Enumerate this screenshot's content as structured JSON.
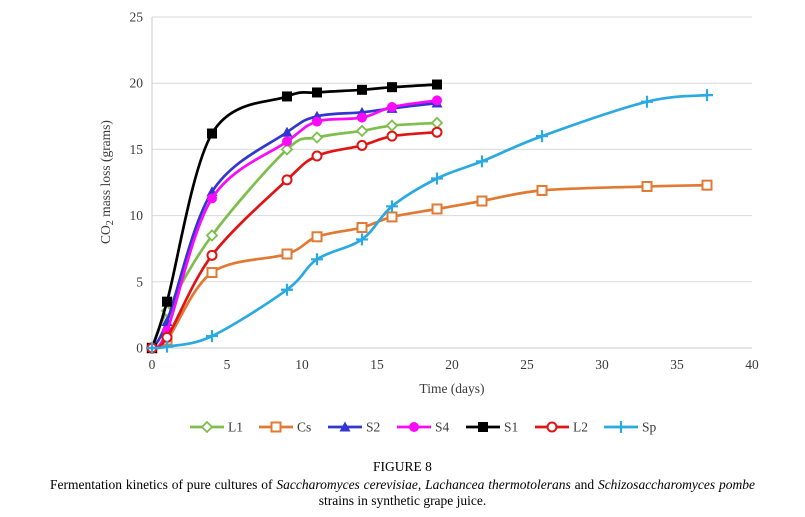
{
  "chart_data": {
    "type": "line",
    "title": "",
    "xlabel": "Time (days)",
    "ylabel": "CO2 mass loss (grams)",
    "ylabel_parts": {
      "pre": "CO",
      "sub": "2",
      "post": " mass loss (grams)"
    },
    "xlim": [
      0,
      40
    ],
    "ylim": [
      0,
      25
    ],
    "xticks": [
      0,
      5,
      10,
      15,
      20,
      25,
      30,
      35,
      40
    ],
    "yticks": [
      0,
      5,
      10,
      15,
      20,
      25
    ],
    "grid": "horizontal",
    "grid_color": "#d9d9d9",
    "axis_color": "#c9c9c9",
    "legend_position": "bottom",
    "series": [
      {
        "name": "L1",
        "color": "#7ebe4d",
        "marker": "diamond-open",
        "x": [
          0,
          1,
          4,
          9,
          11,
          14,
          16,
          19
        ],
        "y": [
          0,
          2.8,
          8.5,
          15.0,
          15.9,
          16.4,
          16.8,
          17.0
        ]
      },
      {
        "name": "Cs",
        "color": "#e07a33",
        "marker": "square-open",
        "x": [
          0,
          1,
          4,
          9,
          11,
          14,
          16,
          19,
          22,
          26,
          33,
          37
        ],
        "y": [
          0,
          0.6,
          5.7,
          7.1,
          8.4,
          9.1,
          9.9,
          10.5,
          11.1,
          11.9,
          12.2,
          12.3
        ]
      },
      {
        "name": "S2",
        "color": "#3236cf",
        "marker": "triangle-filled",
        "x": [
          0,
          1,
          4,
          9,
          11,
          14,
          16,
          19
        ],
        "y": [
          0,
          2.0,
          11.8,
          16.3,
          17.5,
          17.8,
          18.1,
          18.5
        ]
      },
      {
        "name": "S4",
        "color": "#fa0afa",
        "marker": "circle-filled",
        "x": [
          0,
          1,
          4,
          9,
          11,
          14,
          16,
          19
        ],
        "y": [
          0,
          1.3,
          11.3,
          15.6,
          17.1,
          17.4,
          18.2,
          18.7
        ]
      },
      {
        "name": "S1",
        "color": "#000000",
        "marker": "square-filled",
        "x": [
          0,
          1,
          4,
          9,
          11,
          14,
          16,
          19
        ],
        "y": [
          0,
          3.5,
          16.2,
          19.0,
          19.3,
          19.5,
          19.7,
          19.9
        ]
      },
      {
        "name": "L2",
        "color": "#e01414",
        "marker": "circle-open",
        "x": [
          0,
          1,
          4,
          9,
          11,
          14,
          16,
          19
        ],
        "y": [
          0,
          0.8,
          7.0,
          12.7,
          14.5,
          15.3,
          16.0,
          16.3
        ]
      },
      {
        "name": "Sp",
        "color": "#2ba9e1",
        "marker": "plus",
        "x": [
          0,
          1,
          4,
          9,
          11,
          14,
          16,
          19,
          22,
          26,
          33,
          37
        ],
        "y": [
          0,
          0.1,
          0.9,
          4.4,
          6.7,
          8.2,
          10.7,
          12.8,
          14.1,
          16.0,
          18.6,
          19.1
        ]
      }
    ]
  },
  "caption": {
    "figure_label": "FIGURE 8",
    "segments": [
      {
        "text": "Fermentation kinetics of pure cultures of ",
        "italic": false
      },
      {
        "text": "Saccharomyces cerevisiae",
        "italic": true
      },
      {
        "text": ", ",
        "italic": false
      },
      {
        "text": "Lachancea thermotolerans",
        "italic": true
      },
      {
        "text": " and ",
        "italic": false
      },
      {
        "text": "Schizosaccharomyces pombe",
        "italic": true
      },
      {
        "text": " strains in synthetic grape juice.",
        "italic": false
      }
    ]
  }
}
